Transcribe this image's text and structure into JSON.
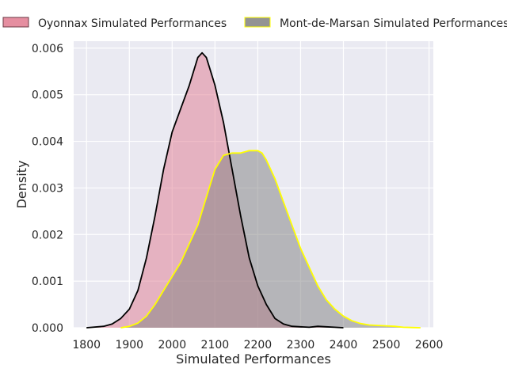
{
  "chart_data": {
    "type": "area",
    "title": "",
    "xlabel": "Simulated Performances",
    "ylabel": "Density",
    "xlim": [
      1770,
      2610
    ],
    "ylim": [
      0,
      0.00615
    ],
    "xticks": [
      1800,
      1900,
      2000,
      2100,
      2200,
      2300,
      2400,
      2500,
      2600
    ],
    "yticks": [
      0.0,
      0.001,
      0.002,
      0.003,
      0.004,
      0.005,
      0.006
    ],
    "ytick_labels": [
      "0.000",
      "0.001",
      "0.002",
      "0.003",
      "0.004",
      "0.005",
      "0.006"
    ],
    "grid": true,
    "background": "#eaeaf2",
    "legend_position": "top",
    "series": [
      {
        "name": "Oyonnax Simulated Performances",
        "fill": "#e07a8f",
        "stroke": "#000000",
        "x": [
          1800,
          1840,
          1860,
          1880,
          1900,
          1920,
          1940,
          1960,
          1980,
          2000,
          2020,
          2040,
          2060,
          2070,
          2080,
          2090,
          2100,
          2120,
          2140,
          2160,
          2180,
          2200,
          2220,
          2240,
          2260,
          2280,
          2300,
          2320,
          2340,
          2360,
          2380,
          2400
        ],
        "y": [
          0.0,
          3e-05,
          8e-05,
          0.0002,
          0.0004,
          0.0008,
          0.0015,
          0.0024,
          0.0034,
          0.0042,
          0.0047,
          0.0052,
          0.0058,
          0.0059,
          0.0058,
          0.0055,
          0.0052,
          0.0044,
          0.0034,
          0.0024,
          0.0015,
          0.0009,
          0.0005,
          0.0002,
          8e-05,
          3e-05,
          2e-05,
          1e-05,
          3e-05,
          2e-05,
          1e-05,
          0.0
        ]
      },
      {
        "name": "Mont-de-Marsan Simulated Performances",
        "fill": "#808080",
        "stroke": "#ffff00",
        "x": [
          1880,
          1900,
          1920,
          1940,
          1960,
          1980,
          2000,
          2020,
          2040,
          2060,
          2080,
          2100,
          2120,
          2140,
          2160,
          2180,
          2200,
          2210,
          2220,
          2240,
          2260,
          2280,
          2300,
          2320,
          2340,
          2360,
          2380,
          2400,
          2420,
          2440,
          2460,
          2480,
          2500,
          2520,
          2540,
          2560,
          2580
        ],
        "y": [
          0.0,
          3e-05,
          0.0001,
          0.00025,
          0.0005,
          0.0008,
          0.0011,
          0.0014,
          0.0018,
          0.0022,
          0.0028,
          0.0034,
          0.0037,
          0.00375,
          0.00375,
          0.0038,
          0.0038,
          0.00375,
          0.0036,
          0.0032,
          0.0027,
          0.0022,
          0.0017,
          0.0013,
          0.0009,
          0.0006,
          0.0004,
          0.00025,
          0.00015,
          9e-05,
          6e-05,
          5e-05,
          4e-05,
          3e-05,
          1e-05,
          5e-06,
          0.0
        ]
      }
    ]
  }
}
